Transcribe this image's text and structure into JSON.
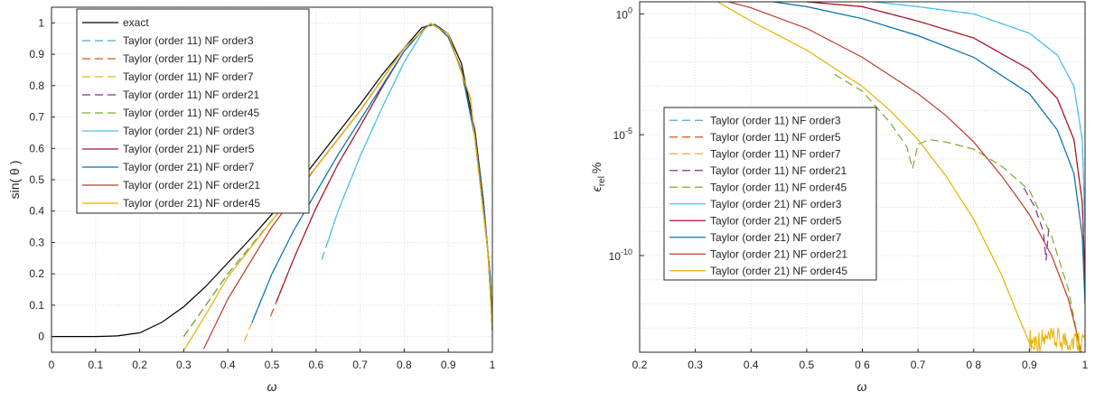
{
  "chart_data": [
    {
      "type": "line",
      "xlabel": "ω",
      "ylabel": "sin( θ )",
      "xlim": [
        0,
        1
      ],
      "ylim": [
        -0.05,
        1.05
      ],
      "xscale": "linear",
      "yscale": "linear",
      "grid": true,
      "legend_position": "top-left",
      "xticks": [
        0,
        0.1,
        0.2,
        0.3,
        0.4,
        0.5,
        0.6,
        0.7,
        0.8,
        0.9,
        1
      ],
      "xtick_labels": [
        "0",
        "0.1",
        "0.2",
        "0.3",
        "0.4",
        "0.5",
        "0.6",
        "0.7",
        "0.8",
        "0.9",
        "1"
      ],
      "yticks": [
        0,
        0.1,
        0.2,
        0.3,
        0.4,
        0.5,
        0.6,
        0.7,
        0.8,
        0.9,
        1
      ],
      "ytick_labels": [
        "0",
        "0.1",
        "0.2",
        "0.3",
        "0.4",
        "0.5",
        "0.6",
        "0.7",
        "0.8",
        "0.9",
        "1"
      ],
      "series": [
        {
          "name": "exact",
          "color": "#000000",
          "dash": "solid",
          "x": [
            0,
            0.1,
            0.15,
            0.2,
            0.25,
            0.3,
            0.35,
            0.4,
            0.45,
            0.5,
            0.55,
            0.6,
            0.65,
            0.7,
            0.75,
            0.8,
            0.84,
            0.87,
            0.9,
            0.93,
            0.96,
            0.98,
            0.995,
            1.0
          ],
          "y": [
            0,
            0,
            0.002,
            0.012,
            0.045,
            0.095,
            0.16,
            0.235,
            0.31,
            0.39,
            0.47,
            0.56,
            0.65,
            0.74,
            0.835,
            0.92,
            0.985,
            0.995,
            0.965,
            0.87,
            0.66,
            0.43,
            0.19,
            0.02
          ]
        },
        {
          "name": "Taylor (order 11) NF order3",
          "color": "#4aa8d8",
          "dash": "dashed",
          "x": [
            0.613,
            0.65,
            0.7,
            0.75,
            0.8,
            0.85,
            0.87,
            0.9,
            0.93,
            0.96,
            0.98,
            0.995,
            1.0
          ],
          "y": [
            0.245,
            0.4,
            0.575,
            0.73,
            0.875,
            0.99,
            0.995,
            0.955,
            0.85,
            0.64,
            0.42,
            0.19,
            0.02
          ]
        },
        {
          "name": "Taylor (order 11) NF order5",
          "color": "#d95319",
          "dash": "dashed",
          "x": [
            0.497,
            0.55,
            0.6,
            0.65,
            0.7,
            0.75,
            0.8,
            0.85,
            0.87,
            0.9,
            0.93,
            0.96,
            0.98,
            0.995,
            1.0
          ],
          "y": [
            0.065,
            0.25,
            0.41,
            0.55,
            0.67,
            0.795,
            0.91,
            0.99,
            0.995,
            0.955,
            0.85,
            0.64,
            0.42,
            0.19,
            0.02
          ]
        },
        {
          "name": "Taylor (order 11) NF order7",
          "color": "#edb120",
          "dash": "dashed",
          "x": [
            0.437,
            0.5,
            0.55,
            0.6,
            0.65,
            0.7,
            0.75,
            0.8,
            0.85,
            0.87,
            0.9,
            0.93,
            0.96,
            0.98,
            0.995,
            1.0
          ],
          "y": [
            -0.015,
            0.2,
            0.34,
            0.46,
            0.58,
            0.69,
            0.8,
            0.91,
            0.99,
            0.995,
            0.955,
            0.85,
            0.64,
            0.42,
            0.19,
            0.02
          ]
        },
        {
          "name": "Taylor (order 11) NF order21",
          "color": "#7e2f8e",
          "dash": "dashed",
          "x": [
            0.3,
            0.4,
            0.5,
            0.6,
            0.7,
            0.8,
            0.86,
            0.9,
            0.95,
            0.99,
            1.0
          ],
          "y": [
            0.0,
            0.2,
            0.37,
            0.54,
            0.72,
            0.92,
            0.998,
            0.965,
            0.76,
            0.27,
            0.02
          ]
        },
        {
          "name": "Taylor (order 11) NF order45",
          "color": "#77ac30",
          "dash": "dashed",
          "x": [
            0.3,
            0.4,
            0.5,
            0.6,
            0.7,
            0.8,
            0.86,
            0.9,
            0.95,
            0.99,
            1.0
          ],
          "y": [
            0.0,
            0.2,
            0.37,
            0.54,
            0.72,
            0.92,
            0.998,
            0.965,
            0.76,
            0.27,
            0.02
          ]
        },
        {
          "name": "Taylor (order 21) NF order3",
          "color": "#4dbeee",
          "dash": "solid",
          "x": [
            0.625,
            0.65,
            0.7,
            0.75,
            0.8,
            0.85,
            0.87,
            0.9,
            0.93,
            0.96,
            0.98,
            0.995,
            1.0
          ],
          "y": [
            0.295,
            0.4,
            0.575,
            0.73,
            0.875,
            0.99,
            0.995,
            0.955,
            0.85,
            0.64,
            0.42,
            0.19,
            0.02
          ]
        },
        {
          "name": "Taylor (order 21) NF order5",
          "color": "#a2142f",
          "dash": "solid",
          "x": [
            0.51,
            0.55,
            0.6,
            0.65,
            0.7,
            0.75,
            0.8,
            0.85,
            0.87,
            0.9,
            0.93,
            0.96,
            0.98,
            0.995,
            1.0
          ],
          "y": [
            0.11,
            0.25,
            0.41,
            0.55,
            0.67,
            0.795,
            0.91,
            0.99,
            0.995,
            0.955,
            0.85,
            0.64,
            0.42,
            0.19,
            0.02
          ]
        },
        {
          "name": "Taylor (order 21) NF order7",
          "color": "#0072bd",
          "dash": "solid",
          "x": [
            0.455,
            0.5,
            0.55,
            0.6,
            0.65,
            0.7,
            0.75,
            0.8,
            0.85,
            0.87,
            0.9,
            0.93,
            0.96,
            0.98,
            0.995,
            1.0
          ],
          "y": [
            0.045,
            0.2,
            0.34,
            0.46,
            0.58,
            0.69,
            0.8,
            0.91,
            0.99,
            0.995,
            0.955,
            0.85,
            0.64,
            0.42,
            0.19,
            0.02
          ]
        },
        {
          "name": "Taylor (order 21) NF order21",
          "color": "#c0392b",
          "dash": "solid",
          "x": [
            0.345,
            0.4,
            0.5,
            0.6,
            0.7,
            0.8,
            0.86,
            0.9,
            0.95,
            0.99,
            1.0
          ],
          "y": [
            -0.04,
            0.12,
            0.35,
            0.54,
            0.72,
            0.92,
            0.998,
            0.965,
            0.76,
            0.27,
            0.02
          ]
        },
        {
          "name": "Taylor (order 21) NF order45",
          "color": "#e8b100",
          "dash": "solid",
          "x": [
            0.302,
            0.35,
            0.4,
            0.5,
            0.6,
            0.7,
            0.8,
            0.86,
            0.9,
            0.95,
            0.99,
            1.0
          ],
          "y": [
            -0.04,
            0.07,
            0.19,
            0.37,
            0.54,
            0.72,
            0.92,
            0.998,
            0.965,
            0.76,
            0.27,
            0.02
          ]
        }
      ]
    },
    {
      "type": "line",
      "xlabel": "ω",
      "ylabel_main": "ϵ",
      "ylabel_sub": "rel",
      "ylabel_unit": "%",
      "xlim": [
        0.2,
        1
      ],
      "ylim_log10": [
        -14,
        0.5
      ],
      "xscale": "linear",
      "yscale": "log",
      "grid": true,
      "legend_position": "center-left",
      "xticks": [
        0.2,
        0.3,
        0.4,
        0.5,
        0.6,
        0.7,
        0.8,
        0.9,
        1
      ],
      "xtick_labels": [
        "0.2",
        "0.3",
        "0.4",
        "0.5",
        "0 6",
        "0.7",
        "0 8",
        "0.9",
        "1"
      ],
      "yticks_log10": [
        0,
        -5,
        -10
      ],
      "ytick_base": "10",
      "ytick_exponents": [
        "0",
        "-5",
        "-10"
      ],
      "series": [
        {
          "name": "Taylor (order 11) NF order3",
          "color": "#4aa8d8",
          "dash": "dashed",
          "x": [
            0.62,
            0.7,
            0.8,
            0.9,
            0.95,
            0.98,
            0.995,
            1.0
          ],
          "log10y": [
            0.5,
            0.3,
            0.0,
            -0.8,
            -1.7,
            -3.0,
            -5.2,
            -9.0
          ]
        },
        {
          "name": "Taylor (order 11) NF order5",
          "color": "#d95319",
          "dash": "dashed",
          "x": [
            0.5,
            0.6,
            0.7,
            0.8,
            0.9,
            0.95,
            0.98,
            0.995,
            1.0
          ],
          "log10y": [
            0.5,
            0.3,
            -0.3,
            -1.0,
            -2.3,
            -3.5,
            -5.2,
            -7.8,
            -11.0
          ]
        },
        {
          "name": "Taylor (order 11) NF order7",
          "color": "#edb120",
          "dash": "dashed",
          "x": [
            0.44,
            0.5,
            0.6,
            0.7,
            0.8,
            0.9,
            0.95,
            0.98,
            0.995,
            1.0
          ],
          "log10y": [
            0.5,
            0.3,
            -0.2,
            -0.9,
            -1.8,
            -3.3,
            -4.8,
            -6.6,
            -9.2,
            -12.0
          ]
        },
        {
          "name": "Taylor (order 11) NF order21",
          "color": "#7e2f8e",
          "dash": "dashed",
          "x": [
            0.89,
            0.91,
            0.925,
            0.93,
            0.935
          ],
          "log10y": [
            -7.2,
            -8.0,
            -9.0,
            -10.2,
            -8.8
          ]
        },
        {
          "name": "Taylor (order 11) NF order45",
          "color": "#77ac30",
          "dash": "dashed",
          "x": [
            0.55,
            0.6,
            0.65,
            0.68,
            0.69,
            0.7,
            0.72,
            0.75,
            0.8,
            0.85,
            0.9,
            0.94,
            0.97,
            0.985,
            0.99
          ],
          "log10y": [
            -2.5,
            -3.2,
            -4.5,
            -5.5,
            -6.4,
            -5.4,
            -5.2,
            -5.3,
            -5.6,
            -6.3,
            -7.3,
            -9.2,
            -11.4,
            -13.2,
            -14.0
          ]
        },
        {
          "name": "Taylor (order 21) NF order3",
          "color": "#4dbeee",
          "dash": "solid",
          "x": [
            0.62,
            0.7,
            0.8,
            0.9,
            0.95,
            0.98,
            0.995,
            1.0
          ],
          "log10y": [
            0.5,
            0.3,
            0.0,
            -0.8,
            -1.7,
            -3.0,
            -5.2,
            -9.0
          ]
        },
        {
          "name": "Taylor (order 21) NF order5",
          "color": "#a2142f",
          "dash": "solid",
          "x": [
            0.5,
            0.6,
            0.7,
            0.8,
            0.9,
            0.95,
            0.98,
            0.995,
            1.0
          ],
          "log10y": [
            0.5,
            0.3,
            -0.3,
            -1.0,
            -2.3,
            -3.5,
            -5.2,
            -7.8,
            -11.0
          ]
        },
        {
          "name": "Taylor (order 21) NF order7",
          "color": "#0072bd",
          "dash": "solid",
          "x": [
            0.44,
            0.5,
            0.6,
            0.7,
            0.8,
            0.9,
            0.95,
            0.98,
            0.995,
            1.0
          ],
          "log10y": [
            0.5,
            0.3,
            -0.2,
            -0.9,
            -1.8,
            -3.3,
            -4.8,
            -6.6,
            -9.2,
            -12.0
          ]
        },
        {
          "name": "Taylor (order 21) NF order21",
          "color": "#c0392b",
          "dash": "solid",
          "x": [
            0.36,
            0.4,
            0.5,
            0.6,
            0.7,
            0.75,
            0.8,
            0.85,
            0.9,
            0.94,
            0.97,
            0.985,
            0.993
          ],
          "log10y": [
            0.5,
            0.25,
            -0.6,
            -1.8,
            -3.3,
            -4.2,
            -5.3,
            -6.7,
            -8.3,
            -10.0,
            -11.8,
            -13.2,
            -14.0
          ]
        },
        {
          "name": "Taylor (order 21) NF order45",
          "color": "#e8b100",
          "dash": "solid",
          "x": [
            0.34,
            0.4,
            0.5,
            0.6,
            0.65,
            0.7,
            0.75,
            0.8,
            0.85,
            0.88,
            0.9,
            0.91
          ],
          "log10y": [
            0.5,
            -0.3,
            -1.5,
            -3.0,
            -4.0,
            -5.2,
            -6.7,
            -8.5,
            -10.8,
            -12.5,
            -13.6,
            -13.9
          ]
        }
      ],
      "noise_band": {
        "x_start": 0.9,
        "x_end": 1.0,
        "log10y_min": -14.0,
        "log10y_max": -13.0,
        "color": "#e8b100"
      }
    }
  ]
}
